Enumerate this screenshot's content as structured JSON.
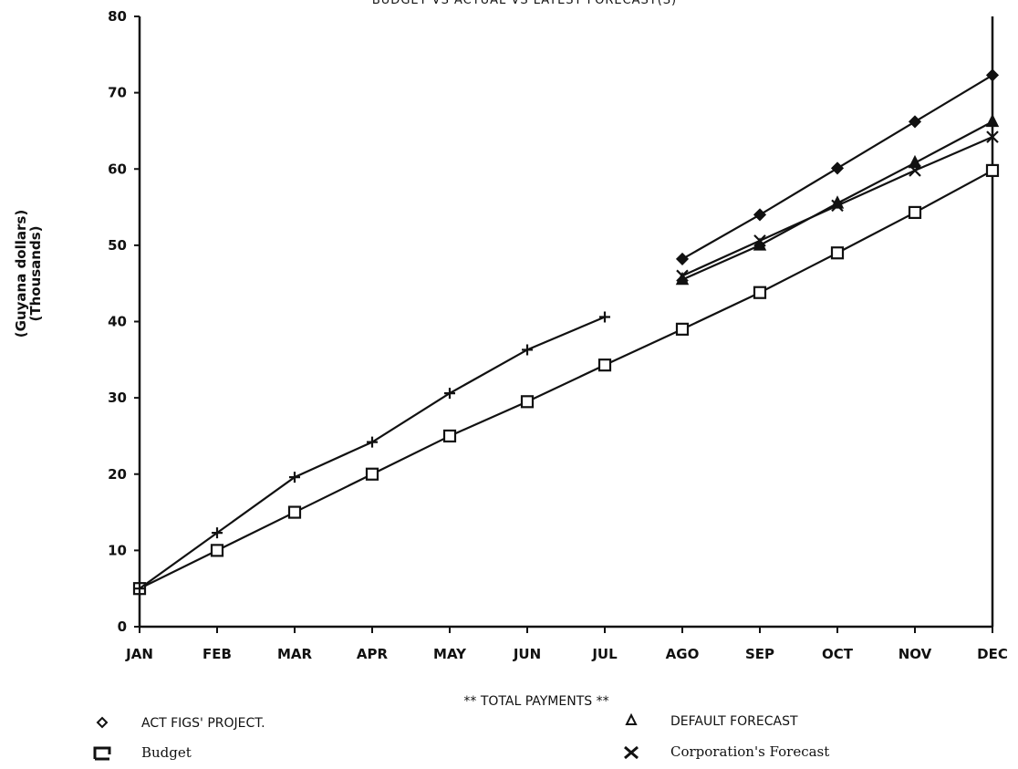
{
  "chart_data": {
    "type": "line",
    "title": "BUDGET VS ACTUAL VS LATEST FORECAST(S)",
    "xlabel": "** TOTAL PAYMENTS **",
    "ylabel_line1": "(Guyana dollars)",
    "ylabel_line2": "(Thousands)",
    "categories": [
      "JAN",
      "FEB",
      "MAR",
      "APR",
      "MAY",
      "JUN",
      "JUL",
      "AGO",
      "SEP",
      "OCT",
      "NOV",
      "DEC"
    ],
    "ylim": [
      0,
      80
    ],
    "yticks": [
      0,
      10,
      20,
      30,
      40,
      50,
      60,
      70,
      80
    ],
    "grid": false,
    "series": [
      {
        "name": "Budget",
        "marker": "square",
        "values": [
          5,
          10,
          15,
          20,
          25,
          29.5,
          34.3,
          39,
          43.8,
          49,
          54.3,
          59.8
        ]
      },
      {
        "name": "",
        "marker": "plus",
        "values": [
          5,
          12.3,
          19.6,
          24.2,
          30.6,
          36.3,
          40.6,
          null,
          null,
          null,
          null,
          null
        ]
      },
      {
        "name": "ACT FIGS' PROJECT.",
        "marker": "diamond",
        "values": [
          null,
          null,
          null,
          null,
          null,
          null,
          null,
          48.2,
          54,
          60.1,
          66.2,
          72.3
        ]
      },
      {
        "name": "DEFAULT FORECAST",
        "marker": "triangle",
        "values": [
          null,
          null,
          null,
          null,
          null,
          null,
          null,
          45.5,
          50,
          55.5,
          60.8,
          66.2
        ]
      },
      {
        "name": "Corporation's Forecast",
        "marker": "x",
        "values": [
          null,
          null,
          null,
          null,
          null,
          null,
          null,
          46,
          50.6,
          55.2,
          59.8,
          64.2
        ]
      }
    ]
  },
  "legend": {
    "left": [
      {
        "label": "ACT FIGS' PROJECT.",
        "marker": "diamond"
      },
      {
        "label": "Budget",
        "marker": "square"
      }
    ],
    "right": [
      {
        "label": "DEFAULT FORECAST",
        "marker": "triangle"
      },
      {
        "label": "Corporation's Forecast",
        "marker": "x"
      }
    ]
  }
}
